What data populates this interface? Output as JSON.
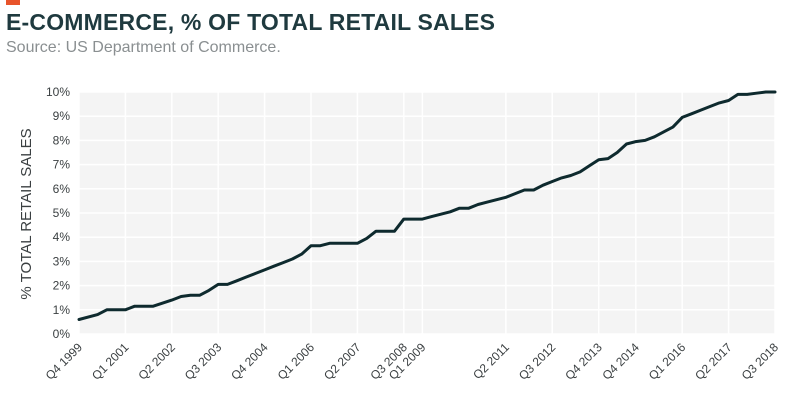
{
  "header": {
    "title": "E-COMMERCE, % OF TOTAL RETAIL SALES",
    "subtitle": "Source: US Department of Commerce."
  },
  "colors": {
    "accent": "#E8542B",
    "title": "#1F3A3F",
    "subtitle": "#8A8F91",
    "line": "#0E2A2E",
    "plot_bg": "#F4F4F4",
    "grid": "#FFFFFF",
    "tick_text": "#3A3F41"
  },
  "chart_data": {
    "type": "line",
    "title": "E-COMMERCE, % OF TOTAL RETAIL SALES",
    "subtitle": "Source: US Department of Commerce.",
    "xlabel": "",
    "ylabel": "% TOTAL RETAIL SALES",
    "ylim": [
      0,
      10
    ],
    "yticks": [
      "0%",
      "1%",
      "2%",
      "3%",
      "4%",
      "5%",
      "6%",
      "7%",
      "8%",
      "9%",
      "10%"
    ],
    "x_tick_labels": [
      "Q4 1999",
      "Q1 2001",
      "Q2 2002",
      "Q3 2003",
      "Q4 2004",
      "Q1 2006",
      "Q2 2007",
      "Q3 2008",
      "Q1 2009",
      "Q2 2011",
      "Q3 2012",
      "Q4 2013",
      "Q4 2014",
      "Q1 2016",
      "Q2 2017",
      "Q3 2018"
    ],
    "x_tick_positions": [
      1999.75,
      2001.0,
      2002.25,
      2003.5,
      2004.75,
      2006.0,
      2007.25,
      2008.5,
      2009.0,
      2011.25,
      2012.5,
      2013.75,
      2014.75,
      2016.0,
      2017.25,
      2018.5
    ],
    "xlim": [
      1999.75,
      2018.5
    ],
    "grid": true,
    "legend": "none",
    "series": [
      {
        "x": [
          1999.75,
          2000.25,
          2000.5,
          2000.75,
          2001.0,
          2001.25,
          2001.5,
          2001.75,
          2002.25,
          2002.5,
          2002.75,
          2003.0,
          2003.25,
          2003.5,
          2003.75,
          2004.0,
          2004.25,
          2004.5,
          2004.75,
          2005.0,
          2005.25,
          2005.5,
          2005.75,
          2006.0,
          2006.25,
          2006.5,
          2006.75,
          2007.0,
          2007.25,
          2007.5,
          2007.75,
          2008.0,
          2008.25,
          2008.5,
          2008.75,
          2009.0,
          2009.25,
          2009.5,
          2009.75,
          2010.0,
          2010.25,
          2010.5,
          2010.75,
          2011.0,
          2011.25,
          2011.5,
          2011.75,
          2012.0,
          2012.25,
          2012.5,
          2012.75,
          2013.0,
          2013.25,
          2013.5,
          2013.75,
          2014.0,
          2014.25,
          2014.5,
          2014.75,
          2015.0,
          2015.25,
          2015.5,
          2015.75,
          2016.0,
          2016.25,
          2016.5,
          2016.75,
          2017.0,
          2017.25,
          2017.5,
          2017.75,
          2018.0,
          2018.25,
          2018.5
        ],
        "y": [
          0.6,
          0.8,
          1.0,
          1.0,
          1.0,
          1.15,
          1.15,
          1.15,
          1.4,
          1.55,
          1.6,
          1.6,
          1.8,
          2.05,
          2.05,
          2.2,
          2.35,
          2.5,
          2.65,
          2.8,
          2.95,
          3.1,
          3.3,
          3.65,
          3.65,
          3.75,
          3.75,
          3.75,
          3.75,
          3.95,
          4.25,
          4.25,
          4.25,
          4.75,
          4.75,
          4.75,
          4.85,
          4.95,
          5.05,
          5.2,
          5.2,
          5.35,
          5.45,
          5.55,
          5.65,
          5.8,
          5.95,
          5.95,
          6.15,
          6.3,
          6.45,
          6.55,
          6.7,
          6.95,
          7.2,
          7.25,
          7.5,
          7.85,
          7.95,
          8.0,
          8.15,
          8.35,
          8.55,
          8.95,
          9.1,
          9.25,
          9.4,
          9.55,
          9.65,
          9.9,
          9.9,
          9.95,
          10.0,
          10.0
        ]
      }
    ]
  }
}
